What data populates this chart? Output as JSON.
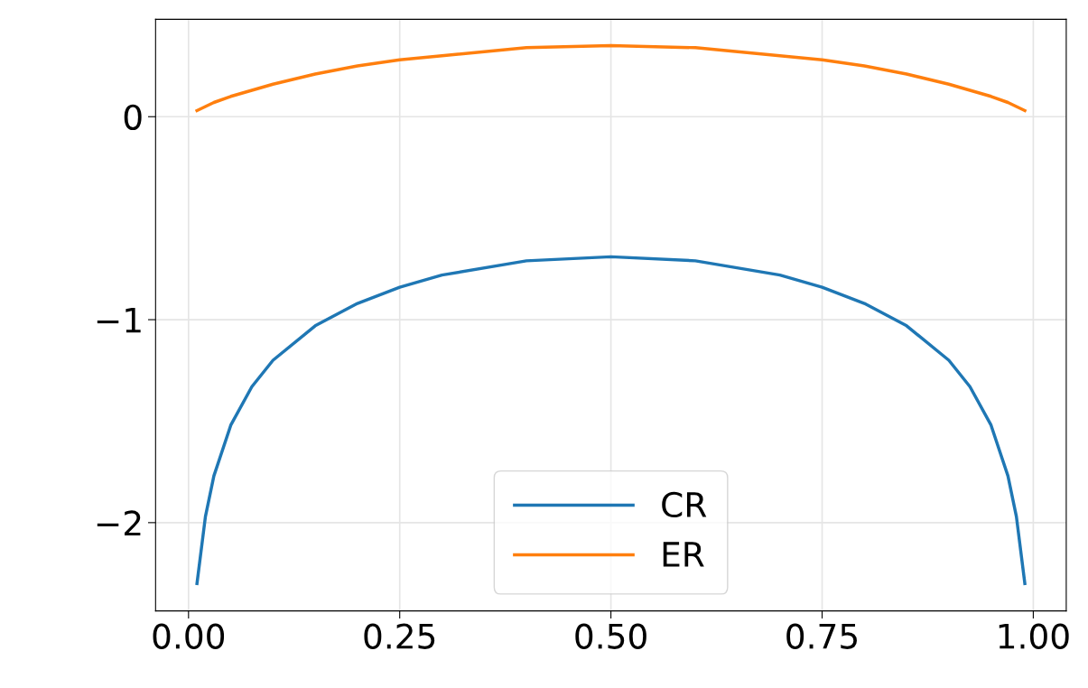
{
  "chart_data": {
    "type": "line",
    "x": [
      0.01,
      0.02,
      0.03,
      0.05,
      0.075,
      0.1,
      0.15,
      0.2,
      0.25,
      0.3,
      0.4,
      0.5,
      0.6,
      0.7,
      0.75,
      0.8,
      0.85,
      0.9,
      0.925,
      0.95,
      0.97,
      0.98,
      0.99
    ],
    "series": [
      {
        "name": "CR",
        "color": "#1f77b4",
        "values": [
          -2.3,
          -1.97,
          -1.77,
          -1.52,
          -1.33,
          -1.2,
          -1.03,
          -0.92,
          -0.84,
          -0.78,
          -0.71,
          -0.69,
          -0.71,
          -0.78,
          -0.84,
          -0.92,
          -1.03,
          -1.2,
          -1.33,
          -1.52,
          -1.77,
          -1.97,
          -2.3
        ]
      },
      {
        "name": "ER",
        "color": "#ff7f0e",
        "values": [
          0.03,
          0.05,
          0.07,
          0.1,
          0.13,
          0.16,
          0.21,
          0.25,
          0.28,
          0.3,
          0.34,
          0.35,
          0.34,
          0.3,
          0.28,
          0.25,
          0.21,
          0.16,
          0.13,
          0.1,
          0.07,
          0.05,
          0.03
        ]
      }
    ],
    "xlim": [
      -0.039,
      1.039
    ],
    "xticks": [
      {
        "value": 0,
        "label": "0.00"
      },
      0.25,
      {
        "value": 0.5,
        "label": "0.50"
      },
      0.75,
      {
        "value": 1,
        "label": "1.00"
      }
    ],
    "ylim": [
      -2.435,
      0.48
    ],
    "yticks": [
      {
        "value": -2,
        "label": "−2"
      },
      {
        "value": -1,
        "label": "−1"
      },
      0
    ],
    "grid": true,
    "legend": "lower center"
  }
}
